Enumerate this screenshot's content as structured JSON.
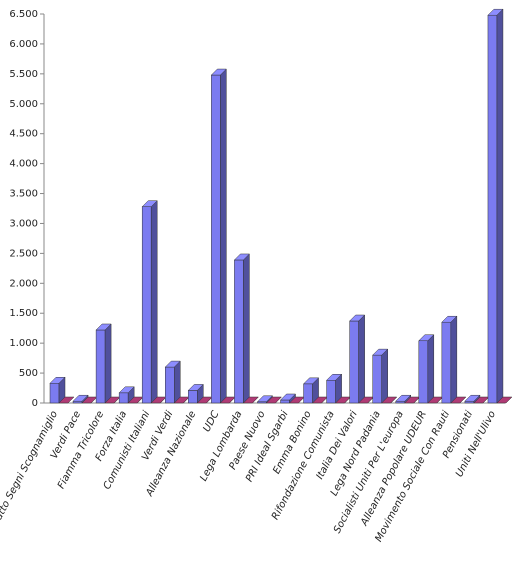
{
  "chart_data": {
    "type": "bar3d",
    "categories": [
      "Patto Segni Scognamiglio",
      "Verdi Pace",
      "Fiamma Tricolore",
      "Forza Italia",
      "Comunisti Italiani",
      "Verdi Verdi",
      "Alleanza Nazionale",
      "UDC",
      "Lega Lombarda",
      "Paese Nuovo",
      "PRI Ideal Sgarbi",
      "Emma Bonino",
      "Rifondazione Comunista",
      "Italia Dei Valori",
      "Lega Nord Padania",
      "Socialisti Uniti Per L'europa",
      "Alleanza Popolare UDEUR",
      "Movimento Sociale Con Rauti",
      "Pensionati",
      "Uniti Nell'Ulivo"
    ],
    "series": [
      {
        "color": "#7b7bf0",
        "values": [
          330,
          30,
          1220,
          170,
          3280,
          600,
          210,
          5480,
          2390,
          20,
          50,
          320,
          380,
          1370,
          800,
          30,
          1040,
          1350,
          30,
          6480
        ]
      },
      {
        "color": "#993366",
        "values": [
          0,
          0,
          0,
          0,
          0,
          0,
          0,
          0,
          0,
          0,
          0,
          0,
          0,
          0,
          0,
          0,
          0,
          0,
          0,
          0
        ]
      }
    ],
    "ylim": [
      0,
      6500
    ],
    "yticks": [
      0,
      500,
      {
        "value": 1000,
        "label": "1.000"
      },
      {
        "value": 1500,
        "label": "1.500"
      },
      {
        "value": 2000,
        "label": "2.000"
      },
      {
        "value": 2500,
        "label": "2.500"
      },
      {
        "value": 3000,
        "label": "3.000"
      },
      {
        "value": 3500,
        "label": "3.500"
      },
      {
        "value": 4000,
        "label": "4.000"
      },
      {
        "value": 4500,
        "label": "4.500"
      },
      {
        "value": 5000,
        "label": "5.000"
      },
      {
        "value": 5500,
        "label": "5.500"
      },
      {
        "value": 6000,
        "label": "6.000"
      },
      {
        "value": 6500,
        "label": "6.500"
      }
    ],
    "grid": false
  }
}
